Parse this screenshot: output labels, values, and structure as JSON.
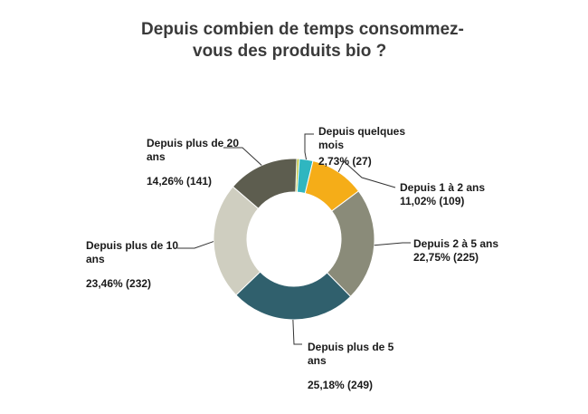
{
  "chart_data": {
    "type": "pie",
    "donut": true,
    "title_lines": [
      "Depuis combien de temps consommez-",
      "vous des produits bio ?"
    ],
    "slices": [
      {
        "label": "",
        "percent_text": "",
        "value": 5,
        "percent": 0.51,
        "color": "#b9c12f"
      },
      {
        "label": "Depuis quelques mois",
        "percent_text": "2,73% (27)",
        "value": 27,
        "percent": 2.73,
        "color": "#2fb6c0"
      },
      {
        "label": "Depuis 1 à 2 ans",
        "percent_text": "11,02% (109)",
        "value": 109,
        "percent": 11.02,
        "color": "#f5ad18"
      },
      {
        "label": "Depuis 2 à 5 ans",
        "percent_text": "22,75% (225)",
        "value": 225,
        "percent": 22.75,
        "color": "#8a8b79"
      },
      {
        "label": "Depuis plus de 5 ans",
        "percent_text": "25,18% (249)",
        "value": 249,
        "percent": 25.18,
        "color": "#30606d"
      },
      {
        "label": "Depuis plus de 10 ans",
        "percent_text": "23,46% (232)",
        "value": 232,
        "percent": 23.46,
        "color": "#cfcec0"
      },
      {
        "label": "Depuis plus de 20 ans",
        "percent_text": "14,26% (141)",
        "value": 141,
        "percent": 14.26,
        "color": "#5d5d4f"
      }
    ]
  }
}
